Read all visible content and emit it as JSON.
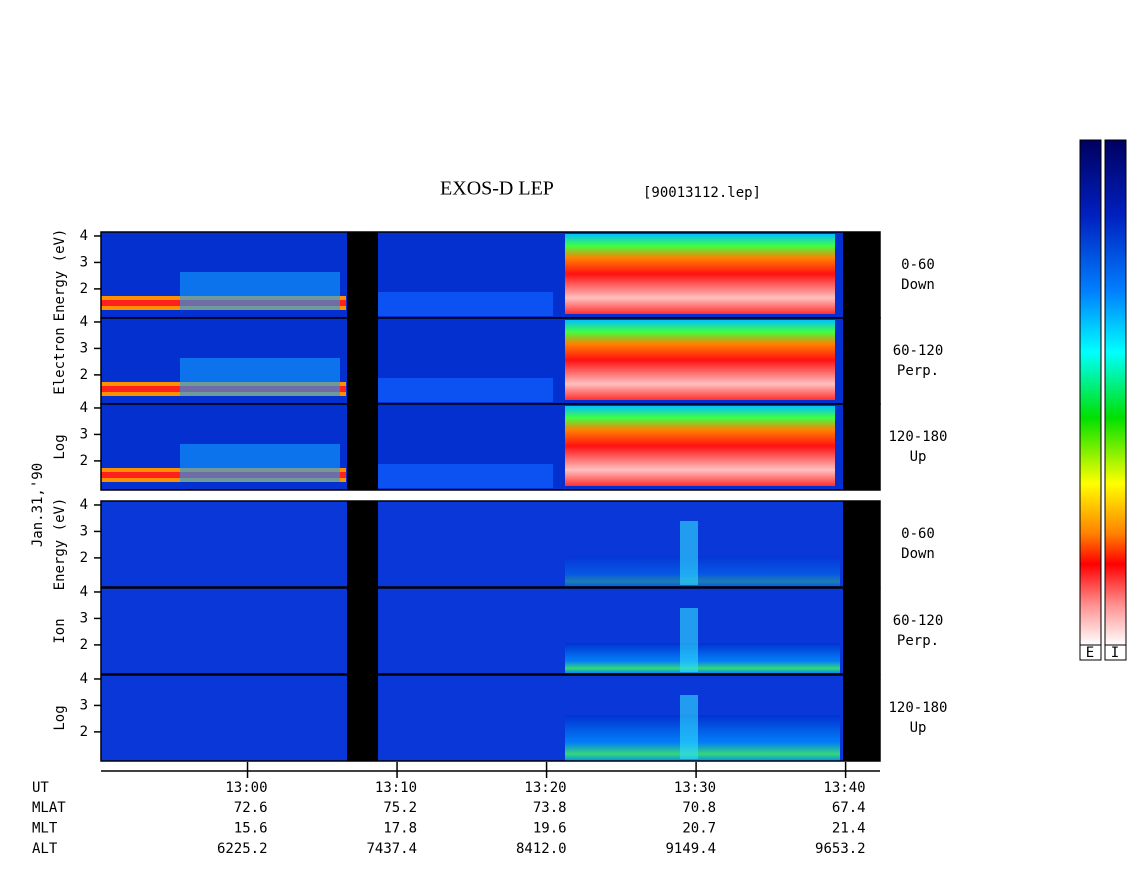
{
  "chart_data": {
    "type": "spectrogram",
    "title": "EXOS-D LEP",
    "subtitle": "[90013112.lep]",
    "date_label": "Jan.31,'90",
    "xlim": [
      50.2,
      102.3
    ],
    "xticks": [
      {
        "value": 60,
        "label": "13:00"
      },
      {
        "value": 70,
        "label": "13:10"
      },
      {
        "value": 80,
        "label": "13:20"
      },
      {
        "value": 90,
        "label": "13:30"
      },
      {
        "value": 100,
        "label": "13:40"
      }
    ],
    "ylim": [
      0.9,
      4.15
    ],
    "yticks": [
      2,
      3,
      4
    ],
    "panels": [
      {
        "species": "Electron",
        "axis_words": [
          "Log",
          "Electron",
          "Energy (eV)"
        ]
      },
      {
        "species": "Ion",
        "axis_words": [
          "Log",
          "Ion",
          "Energy (eV)"
        ]
      }
    ],
    "pitch_angles": [
      {
        "range": "0-60",
        "direction": "Down"
      },
      {
        "range": "60-120",
        "direction": "Perp."
      },
      {
        "range": "120-180",
        "direction": "Up"
      }
    ],
    "time_row_name": "UT",
    "ephemeris": [
      {
        "name": "MLAT",
        "values": [
          "72.6",
          "75.2",
          "73.8",
          "70.8",
          "67.4"
        ]
      },
      {
        "name": "MLT",
        "values": [
          "15.6",
          "17.8",
          "19.6",
          "20.7",
          "21.4"
        ]
      },
      {
        "name": "ALT",
        "values": [
          "6225.2",
          "7437.4",
          "8412.0",
          "9149.4",
          "9653.2"
        ]
      }
    ],
    "colorbar_labels": [
      "E",
      "I"
    ]
  }
}
